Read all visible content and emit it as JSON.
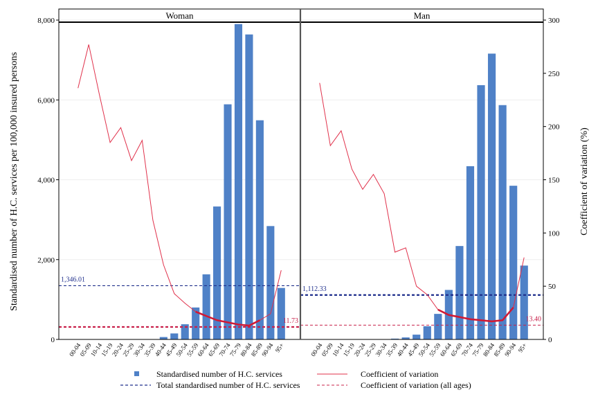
{
  "chart_data": {
    "type": "bar",
    "y_left_label": "Standardised number of H.C. services per 100,000 insured persons",
    "y_right_label": "Coefficient of variation (%)",
    "y_left_ticks": [
      "0",
      "2,000",
      "4,000",
      "6,000",
      "8,000"
    ],
    "y_right_ticks": [
      "0",
      "50",
      "100",
      "150",
      "200",
      "250",
      "300"
    ],
    "y_left_range": [
      0,
      8000
    ],
    "y_right_range": [
      0,
      300
    ],
    "categories": [
      "00-04",
      "05-09",
      "10-14",
      "15-19",
      "20-24",
      "25-29",
      "30-34",
      "35-39",
      "40-44",
      "45-49",
      "50-54",
      "55-59",
      "60-64",
      "65-69",
      "70-74",
      "75-79",
      "80-84",
      "85-89",
      "90-94",
      "95+"
    ],
    "panels": [
      {
        "title": "Woman",
        "bars": [
          0,
          0,
          0,
          0,
          0,
          0,
          0,
          0,
          60,
          150,
          380,
          800,
          1630,
          3330,
          5890,
          7900,
          7640,
          5490,
          2840,
          1290
        ],
        "cv": [
          236,
          277,
          230,
          185,
          199,
          168,
          187,
          112,
          70,
          43,
          34,
          26,
          22,
          18,
          16,
          14,
          13,
          18,
          24,
          65
        ],
        "cv_bold_range": [
          11,
          17
        ],
        "total_value": 1346.01,
        "total_label": "1,346.01",
        "cv_all_value": 11.73,
        "cv_all_label": "11.73"
      },
      {
        "title": "Man",
        "bars": [
          0,
          0,
          0,
          0,
          0,
          0,
          0,
          20,
          50,
          120,
          330,
          640,
          1240,
          2340,
          4340,
          6370,
          7160,
          5870,
          3850,
          1850
        ],
        "cv": [
          241,
          182,
          196,
          160,
          141,
          155,
          137,
          82,
          86,
          50,
          42,
          28,
          23,
          21,
          19,
          18,
          17,
          18,
          30,
          77
        ],
        "cv_bold_range": [
          11,
          18
        ],
        "total_value": 1112.33,
        "total_label": "1,112.33",
        "cv_all_value": 13.4,
        "cv_all_label": "13.40"
      }
    ],
    "legend": {
      "bars": "Standardised number of H.C. services",
      "cv": "Coefficient of variation",
      "total": "Total standardised number of H.C. services",
      "cv_all": "Coefficient of variation (all ages)"
    },
    "colors": {
      "bar": "#4f81c7",
      "cv": "#e0304a",
      "cv_bold": "#d01a35",
      "total": "#1f2f8c",
      "cv_all": "#c8204a",
      "total_label": "#1f2f8c",
      "cv_all_label": "#c8204a"
    },
    "legend_position": "bottom"
  }
}
